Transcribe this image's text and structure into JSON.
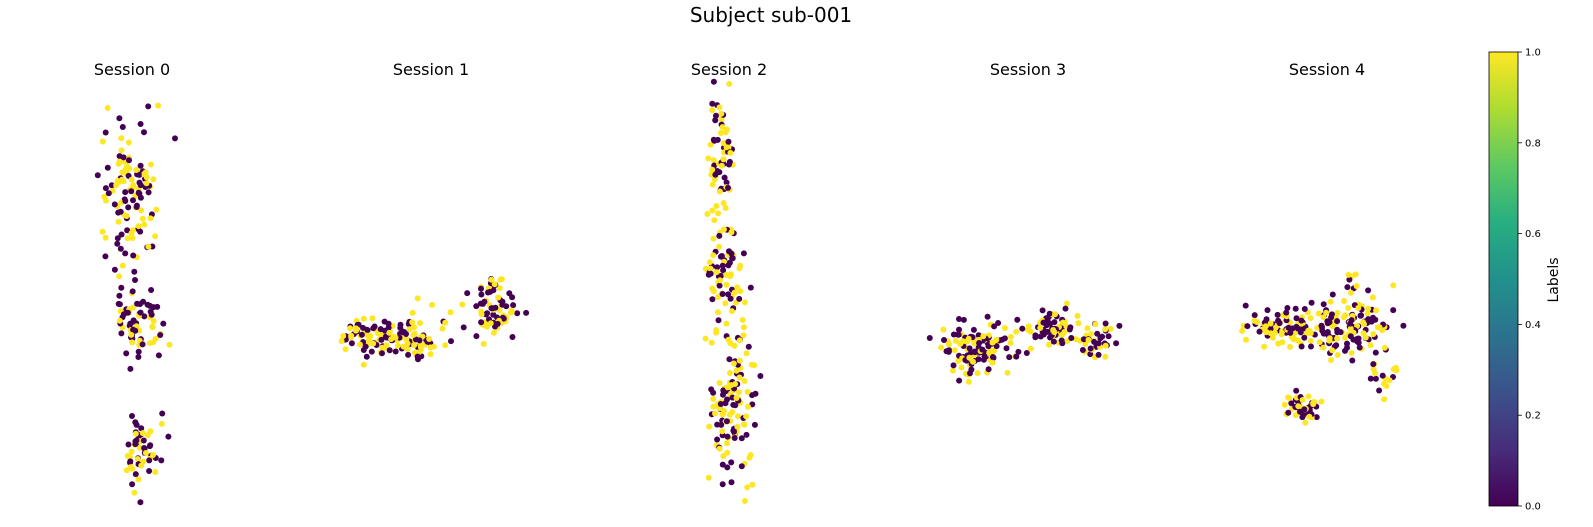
{
  "chart_data": {
    "type": "scatter",
    "title": "Subject sub-001",
    "colorbar": {
      "label": "Labels",
      "colormap": "viridis",
      "range": [
        0.0,
        1.0
      ],
      "ticks": [
        "0.0",
        "0.2",
        "0.4",
        "0.6",
        "0.8",
        "1.0"
      ]
    },
    "colors": {
      "label_0": "#440154",
      "label_1": "#fde725"
    },
    "axes_visible": false,
    "panels": [
      {
        "title": "Session 0",
        "clusters": [
          {
            "cx": 0.0,
            "cy": 5.2,
            "sx": 0.8,
            "sy": 1.6,
            "n": 120
          },
          {
            "cx": 0.3,
            "cy": 1.0,
            "sx": 0.6,
            "sy": 0.9,
            "n": 70
          },
          {
            "cx": 0.4,
            "cy": -3.8,
            "sx": 0.45,
            "sy": 0.85,
            "n": 55
          }
        ]
      },
      {
        "title": "Session 1",
        "clusters": [
          {
            "cx": -1.4,
            "cy": 0.2,
            "sx": 1.3,
            "sy": 0.55,
            "n": 135
          },
          {
            "cx": 2.3,
            "cy": 1.4,
            "sx": 0.75,
            "sy": 0.65,
            "n": 75
          }
        ]
      },
      {
        "title": "Session 2",
        "clusters": [
          {
            "cx": -0.3,
            "cy": 6.7,
            "sx": 0.35,
            "sy": 1.7,
            "n": 70
          },
          {
            "cx": -0.1,
            "cy": 2.4,
            "sx": 0.5,
            "sy": 1.1,
            "n": 70
          },
          {
            "cx": 0.1,
            "cy": -2.2,
            "sx": 0.55,
            "sy": 2.0,
            "n": 130
          }
        ]
      },
      {
        "title": "Session 3",
        "clusters": [
          {
            "cx": -1.9,
            "cy": -0.2,
            "sx": 0.9,
            "sy": 0.65,
            "n": 120
          },
          {
            "cx": 1.0,
            "cy": 0.6,
            "sx": 0.65,
            "sy": 0.5,
            "n": 65
          },
          {
            "cx": 2.5,
            "cy": 0.2,
            "sx": 0.55,
            "sy": 0.5,
            "n": 40
          }
        ]
      },
      {
        "title": "Session 4",
        "clusters": [
          {
            "cx": -1.9,
            "cy": 0.6,
            "sx": 0.9,
            "sy": 0.4,
            "n": 70
          },
          {
            "cx": 0.6,
            "cy": 0.6,
            "sx": 1.1,
            "sy": 0.7,
            "n": 150
          },
          {
            "cx": -0.9,
            "cy": -2.3,
            "sx": 0.5,
            "sy": 0.35,
            "n": 45
          },
          {
            "cx": 0.9,
            "cy": 2.2,
            "sx": 0.15,
            "sy": 0.3,
            "n": 8
          },
          {
            "cx": 2.0,
            "cy": -1.2,
            "sx": 0.5,
            "sy": 0.6,
            "n": 18
          }
        ]
      }
    ],
    "xlim": [
      -4.5,
      4.5
    ],
    "ylim": [
      -5.5,
      9.0
    ]
  }
}
